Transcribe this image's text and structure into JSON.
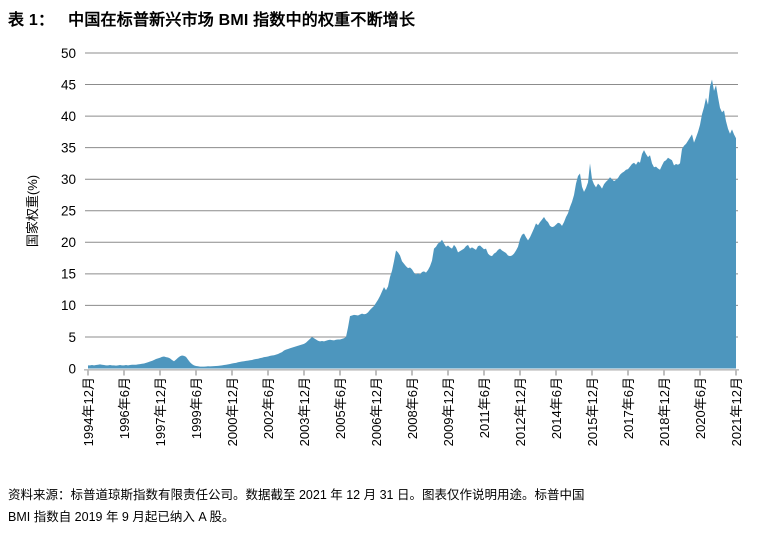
{
  "title": {
    "prefix": "表 1：",
    "text": "中国在标普新兴市场 BMI 指数中的权重不断增长"
  },
  "footnote": {
    "line1": "资料来源：标普道琼斯指数有限责任公司。数据截至 2021 年 12 月 31 日。图表仅作说明用途。标普中国",
    "line2": "BMI 指数自 2019 年 9 月起已纳入 A 股。"
  },
  "chart_data": {
    "type": "area",
    "title": "中国在标普新兴市场 BMI 指数中的权重不断增长",
    "xlabel": "",
    "ylabel": "国家权重(%)",
    "ylim": [
      0,
      50
    ],
    "ytick_interval": 5,
    "ytick_labels": [
      "0",
      "5",
      "10",
      "15",
      "20",
      "25",
      "30",
      "35",
      "40",
      "45",
      "50"
    ],
    "grid": "horizontal",
    "legend": "none",
    "x_start": "1994-12",
    "x_end": "2021-12",
    "x_frequency": "monthly",
    "xtick_every_n_months": 18,
    "xtick_labels": [
      "1994年12月",
      "1996年6月",
      "1997年12月",
      "1999年6月",
      "2000年12月",
      "2002年6月",
      "2003年12月",
      "2005年6月",
      "2006年12月",
      "2008年6月",
      "2009年12月",
      "2011年6月",
      "2012年12月",
      "2014年6月",
      "2015年12月",
      "2017年6月",
      "2018年12月",
      "2020年6月",
      "2021年12月"
    ],
    "area_color": "#4D96BE",
    "grid_color": "#8C8C8C",
    "axis_color": "#BFBFBF",
    "tick_color": "#7F7F7F",
    "values": [
      0.5,
      0.5,
      0.55,
      0.5,
      0.55,
      0.6,
      0.65,
      0.6,
      0.55,
      0.5,
      0.5,
      0.55,
      0.5,
      0.5,
      0.45,
      0.5,
      0.55,
      0.5,
      0.5,
      0.55,
      0.5,
      0.55,
      0.6,
      0.6,
      0.6,
      0.65,
      0.7,
      0.75,
      0.8,
      0.9,
      1.0,
      1.1,
      1.2,
      1.35,
      1.5,
      1.6,
      1.7,
      1.85,
      1.9,
      1.8,
      1.75,
      1.6,
      1.35,
      1.15,
      1.4,
      1.7,
      1.95,
      2.05,
      2.0,
      1.85,
      1.4,
      1.0,
      0.7,
      0.5,
      0.4,
      0.35,
      0.3,
      0.3,
      0.3,
      0.32,
      0.35,
      0.33,
      0.35,
      0.38,
      0.4,
      0.42,
      0.45,
      0.5,
      0.55,
      0.6,
      0.65,
      0.72,
      0.8,
      0.85,
      0.9,
      1.0,
      1.05,
      1.1,
      1.15,
      1.2,
      1.25,
      1.3,
      1.35,
      1.45,
      1.5,
      1.55,
      1.65,
      1.7,
      1.8,
      1.85,
      1.9,
      2.0,
      2.05,
      2.1,
      2.2,
      2.3,
      2.45,
      2.6,
      2.85,
      3.0,
      3.1,
      3.2,
      3.3,
      3.4,
      3.5,
      3.6,
      3.7,
      3.8,
      3.9,
      4.1,
      4.4,
      4.7,
      5.0,
      4.8,
      4.6,
      4.4,
      4.3,
      4.35,
      4.3,
      4.4,
      4.5,
      4.55,
      4.5,
      4.45,
      4.55,
      4.6,
      4.6,
      4.7,
      4.8,
      5.0,
      6.5,
      8.3,
      8.4,
      8.5,
      8.45,
      8.4,
      8.55,
      8.7,
      8.6,
      8.65,
      8.9,
      9.3,
      9.6,
      9.9,
      10.4,
      10.9,
      11.5,
      12.2,
      12.9,
      12.4,
      13.0,
      14.5,
      15.5,
      17.0,
      18.7,
      18.4,
      17.9,
      17.0,
      16.6,
      16.2,
      15.9,
      16.0,
      15.7,
      15.2,
      14.9,
      15.1,
      14.9,
      15.3,
      15.4,
      15.2,
      15.6,
      16.2,
      17.1,
      19.0,
      19.3,
      19.8,
      20.0,
      20.4,
      19.8,
      19.3,
      19.5,
      19.2,
      19.0,
      19.6,
      19.2,
      18.4,
      18.6,
      18.8,
      19.0,
      19.4,
      19.6,
      19.0,
      19.2,
      19.0,
      18.8,
      19.4,
      19.5,
      19.2,
      18.9,
      19.0,
      18.2,
      17.9,
      17.8,
      18.2,
      18.4,
      18.8,
      19.0,
      18.7,
      18.5,
      18.3,
      17.9,
      17.8,
      17.9,
      18.2,
      18.7,
      19.3,
      20.5,
      21.2,
      21.4,
      20.8,
      20.3,
      20.8,
      21.5,
      22.2,
      23.0,
      22.7,
      23.2,
      23.6,
      24.0,
      23.5,
      23.2,
      22.6,
      22.4,
      22.5,
      22.8,
      23.1,
      23.0,
      22.6,
      23.2,
      24.0,
      24.6,
      25.6,
      26.4,
      27.5,
      29.3,
      30.5,
      30.9,
      28.8,
      28.0,
      28.6,
      29.5,
      32.5,
      30.0,
      29.2,
      28.7,
      29.3,
      29.0,
      28.5,
      29.2,
      29.6,
      29.9,
      30.3,
      30.0,
      29.7,
      29.9,
      30.2,
      30.7,
      31.0,
      31.2,
      31.5,
      31.6,
      32.0,
      32.4,
      32.6,
      32.3,
      32.8,
      32.6,
      34.0,
      34.6,
      34.0,
      33.5,
      33.8,
      32.5,
      31.9,
      32.0,
      31.7,
      31.5,
      32.2,
      32.8,
      33.0,
      33.4,
      33.2,
      33.0,
      32.2,
      32.4,
      32.3,
      32.5,
      34.8,
      35.3,
      35.6,
      36.1,
      36.6,
      37.1,
      35.8,
      36.6,
      37.5,
      38.6,
      40.3,
      41.4,
      42.9,
      41.8,
      44.7,
      45.8,
      44.0,
      44.9,
      43.0,
      41.3,
      40.6,
      40.9,
      39.2,
      38.0,
      37.2,
      37.9,
      37.1,
      36.5
    ]
  }
}
